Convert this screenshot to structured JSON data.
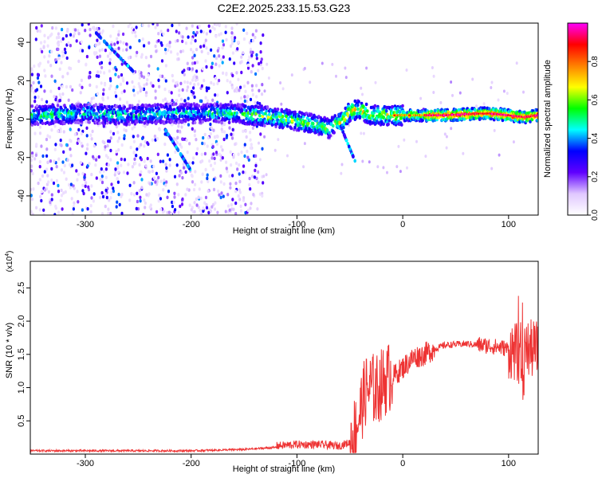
{
  "figure_title": "C2E2.2025.233.15.53.G23",
  "chart_data": [
    {
      "type": "heatmap",
      "xlabel": "Height of straight line (km)",
      "ylabel": "Frequency (Hz)",
      "xlim": [
        -352,
        128
      ],
      "ylim": [
        -50,
        50
      ],
      "x_ticks": [
        -300,
        -200,
        -100,
        0,
        100
      ],
      "y_ticks": [
        -40,
        -20,
        0,
        20,
        40
      ],
      "colorbar": {
        "label": "Normalized spectral amplitude",
        "range": [
          0,
          1
        ],
        "ticks": [
          "0.0",
          "0.2",
          "0.4",
          "0.6",
          "0.8"
        ],
        "colors": [
          "#ffffff",
          "#e0c8ff",
          "#6000ff",
          "#0000ff",
          "#00ffff",
          "#00ff00",
          "#ffff00",
          "#ff8000",
          "#ff0000",
          "#ff00ff"
        ]
      },
      "signal_track": [
        [
          -350,
          2
        ],
        [
          -300,
          3
        ],
        [
          -260,
          2
        ],
        [
          -220,
          3
        ],
        [
          -190,
          3
        ],
        [
          -160,
          3
        ],
        [
          -140,
          2
        ],
        [
          -120,
          1
        ],
        [
          -100,
          -1
        ],
        [
          -80,
          -3
        ],
        [
          -70,
          -5
        ],
        [
          -65,
          -3
        ],
        [
          -55,
          0
        ],
        [
          -50,
          4
        ],
        [
          -40,
          5
        ],
        [
          -30,
          2
        ],
        [
          -20,
          2
        ],
        [
          0,
          2
        ],
        [
          40,
          2
        ],
        [
          80,
          3
        ],
        [
          100,
          2
        ],
        [
          115,
          1
        ],
        [
          128,
          2
        ]
      ]
    },
    {
      "type": "line",
      "xlabel": "Height of straight line (km)",
      "ylabel": "SNR (10 * v/v)",
      "y_scale_label": "(x10",
      "y_scale_exponent": "4",
      "xlim": [
        -352,
        128
      ],
      "ylim": [
        0,
        2.9
      ],
      "x_ticks": [
        -300,
        -200,
        -100,
        0,
        100
      ],
      "y_ticks": [
        "0.5",
        "1.0",
        "1.5",
        "2.0",
        "2.5"
      ],
      "series": [
        {
          "color": "#ee3333",
          "envelope": [
            [
              -352,
              0.05
            ],
            [
              -200,
              0.05
            ],
            [
              -150,
              0.07
            ],
            [
              -120,
              0.1
            ],
            [
              -100,
              0.12
            ],
            [
              -80,
              0.12
            ],
            [
              -60,
              0.1
            ],
            [
              -50,
              0.15
            ],
            [
              -45,
              0.3
            ],
            [
              -40,
              0.6
            ],
            [
              -35,
              0.9
            ],
            [
              -30,
              0.95
            ],
            [
              -25,
              0.9
            ],
            [
              -20,
              1.0
            ],
            [
              -10,
              1.15
            ],
            [
              0,
              1.3
            ],
            [
              10,
              1.45
            ],
            [
              20,
              1.5
            ],
            [
              30,
              1.58
            ],
            [
              40,
              1.64
            ],
            [
              60,
              1.66
            ],
            [
              80,
              1.63
            ],
            [
              95,
              1.6
            ],
            [
              105,
              1.55
            ],
            [
              110,
              1.5
            ],
            [
              114,
              1.2
            ],
            [
              116,
              1.58
            ],
            [
              128,
              1.57
            ]
          ]
        }
      ]
    }
  ]
}
